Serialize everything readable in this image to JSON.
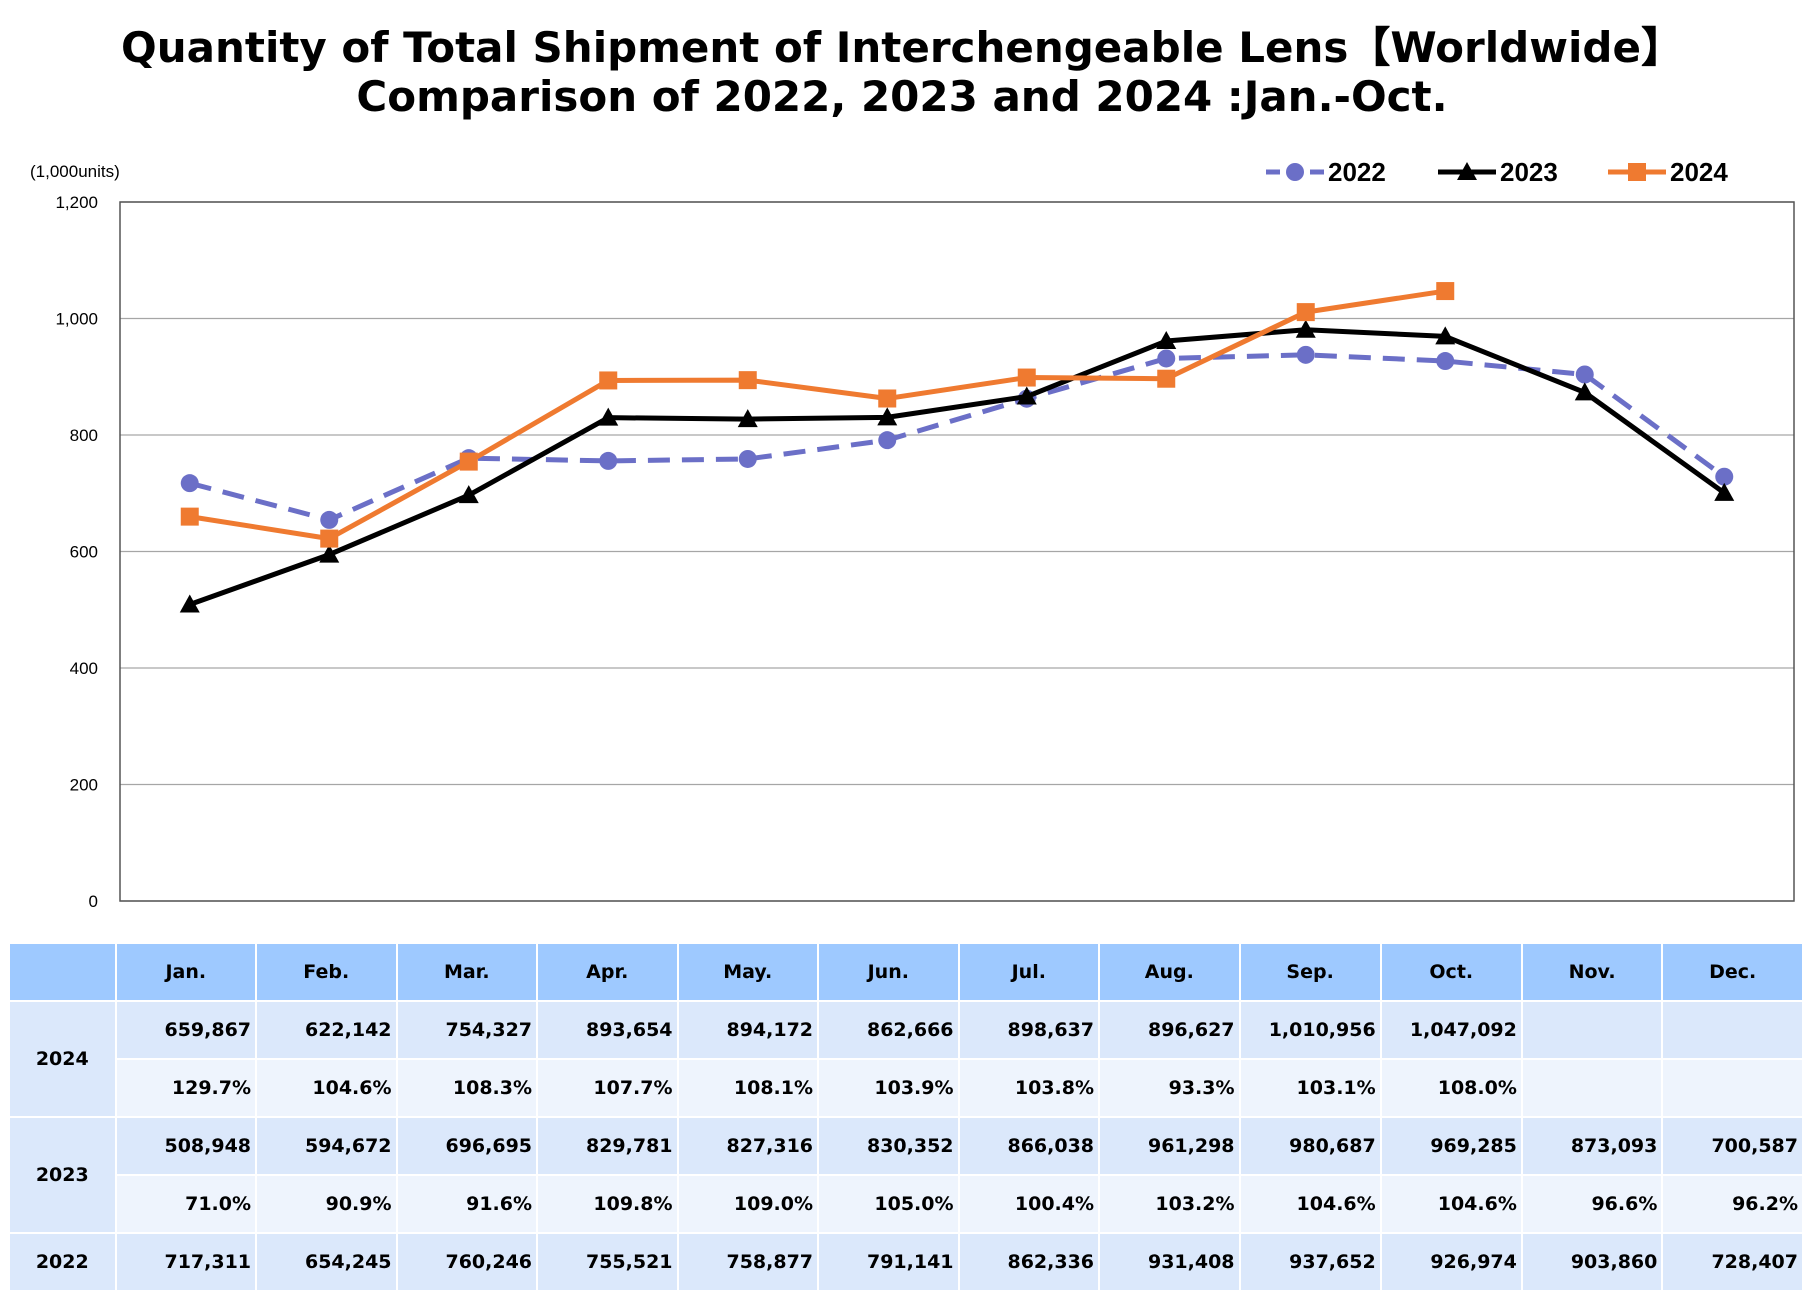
{
  "chart_data": {
    "type": "line",
    "title": "Quantity of Total Shipment of Interchengeable Lens【Worldwide】",
    "subtitle": "Comparison of 2022, 2023 and 2024 :Jan.-Oct.",
    "unit_label": "(1,000units)",
    "categories": [
      "Jan.",
      "Feb.",
      "Mar.",
      "Apr.",
      "May.",
      "Jun.",
      "Jul.",
      "Aug.",
      "Sep.",
      "Oct.",
      "Nov.",
      "Dec."
    ],
    "ylim": [
      0,
      1200
    ],
    "yticks": [
      0,
      200,
      400,
      600,
      800,
      1000,
      1200
    ],
    "ytick_labels": [
      "0",
      "200",
      "400",
      "600",
      "800",
      "1,000",
      "1,200"
    ],
    "grid": true,
    "legend_position": "top-right",
    "series": [
      {
        "name": "2022",
        "color": "#6b6fc7",
        "style": "dashed",
        "marker": "circle",
        "values": [
          717.311,
          654.245,
          760.246,
          755.521,
          758.877,
          791.141,
          862.336,
          931.408,
          937.652,
          926.974,
          903.86,
          728.407
        ]
      },
      {
        "name": "2023",
        "color": "#000000",
        "style": "solid",
        "marker": "triangle",
        "values": [
          508.948,
          594.672,
          696.695,
          829.781,
          827.316,
          830.352,
          866.038,
          961.298,
          980.687,
          969.285,
          873.093,
          700.587
        ]
      },
      {
        "name": "2024",
        "color": "#ef7a30",
        "style": "solid",
        "marker": "square",
        "values": [
          659.867,
          622.142,
          754.327,
          893.654,
          894.172,
          862.666,
          898.637,
          896.627,
          1010.956,
          1047.092,
          null,
          null
        ]
      }
    ]
  },
  "table": {
    "months": [
      "Jan.",
      "Feb.",
      "Mar.",
      "Apr.",
      "May.",
      "Jun.",
      "Jul.",
      "Aug.",
      "Sep.",
      "Oct.",
      "Nov.",
      "Dec."
    ],
    "groups": [
      {
        "year": "2024",
        "rows": [
          [
            "659,867",
            "622,142",
            "754,327",
            "893,654",
            "894,172",
            "862,666",
            "898,637",
            "896,627",
            "1,010,956",
            "1,047,092",
            "",
            ""
          ],
          [
            "129.7%",
            "104.6%",
            "108.3%",
            "107.7%",
            "108.1%",
            "103.9%",
            "103.8%",
            "93.3%",
            "103.1%",
            "108.0%",
            "",
            ""
          ]
        ]
      },
      {
        "year": "2023",
        "rows": [
          [
            "508,948",
            "594,672",
            "696,695",
            "829,781",
            "827,316",
            "830,352",
            "866,038",
            "961,298",
            "980,687",
            "969,285",
            "873,093",
            "700,587"
          ],
          [
            "71.0%",
            "90.9%",
            "91.6%",
            "109.8%",
            "109.0%",
            "105.0%",
            "100.4%",
            "103.2%",
            "104.6%",
            "104.6%",
            "96.6%",
            "96.2%"
          ]
        ]
      },
      {
        "year": "2022",
        "rows": [
          [
            "717,311",
            "654,245",
            "760,246",
            "755,521",
            "758,877",
            "791,141",
            "862,336",
            "931,408",
            "937,652",
            "926,974",
            "903,860",
            "728,407"
          ]
        ]
      }
    ]
  }
}
